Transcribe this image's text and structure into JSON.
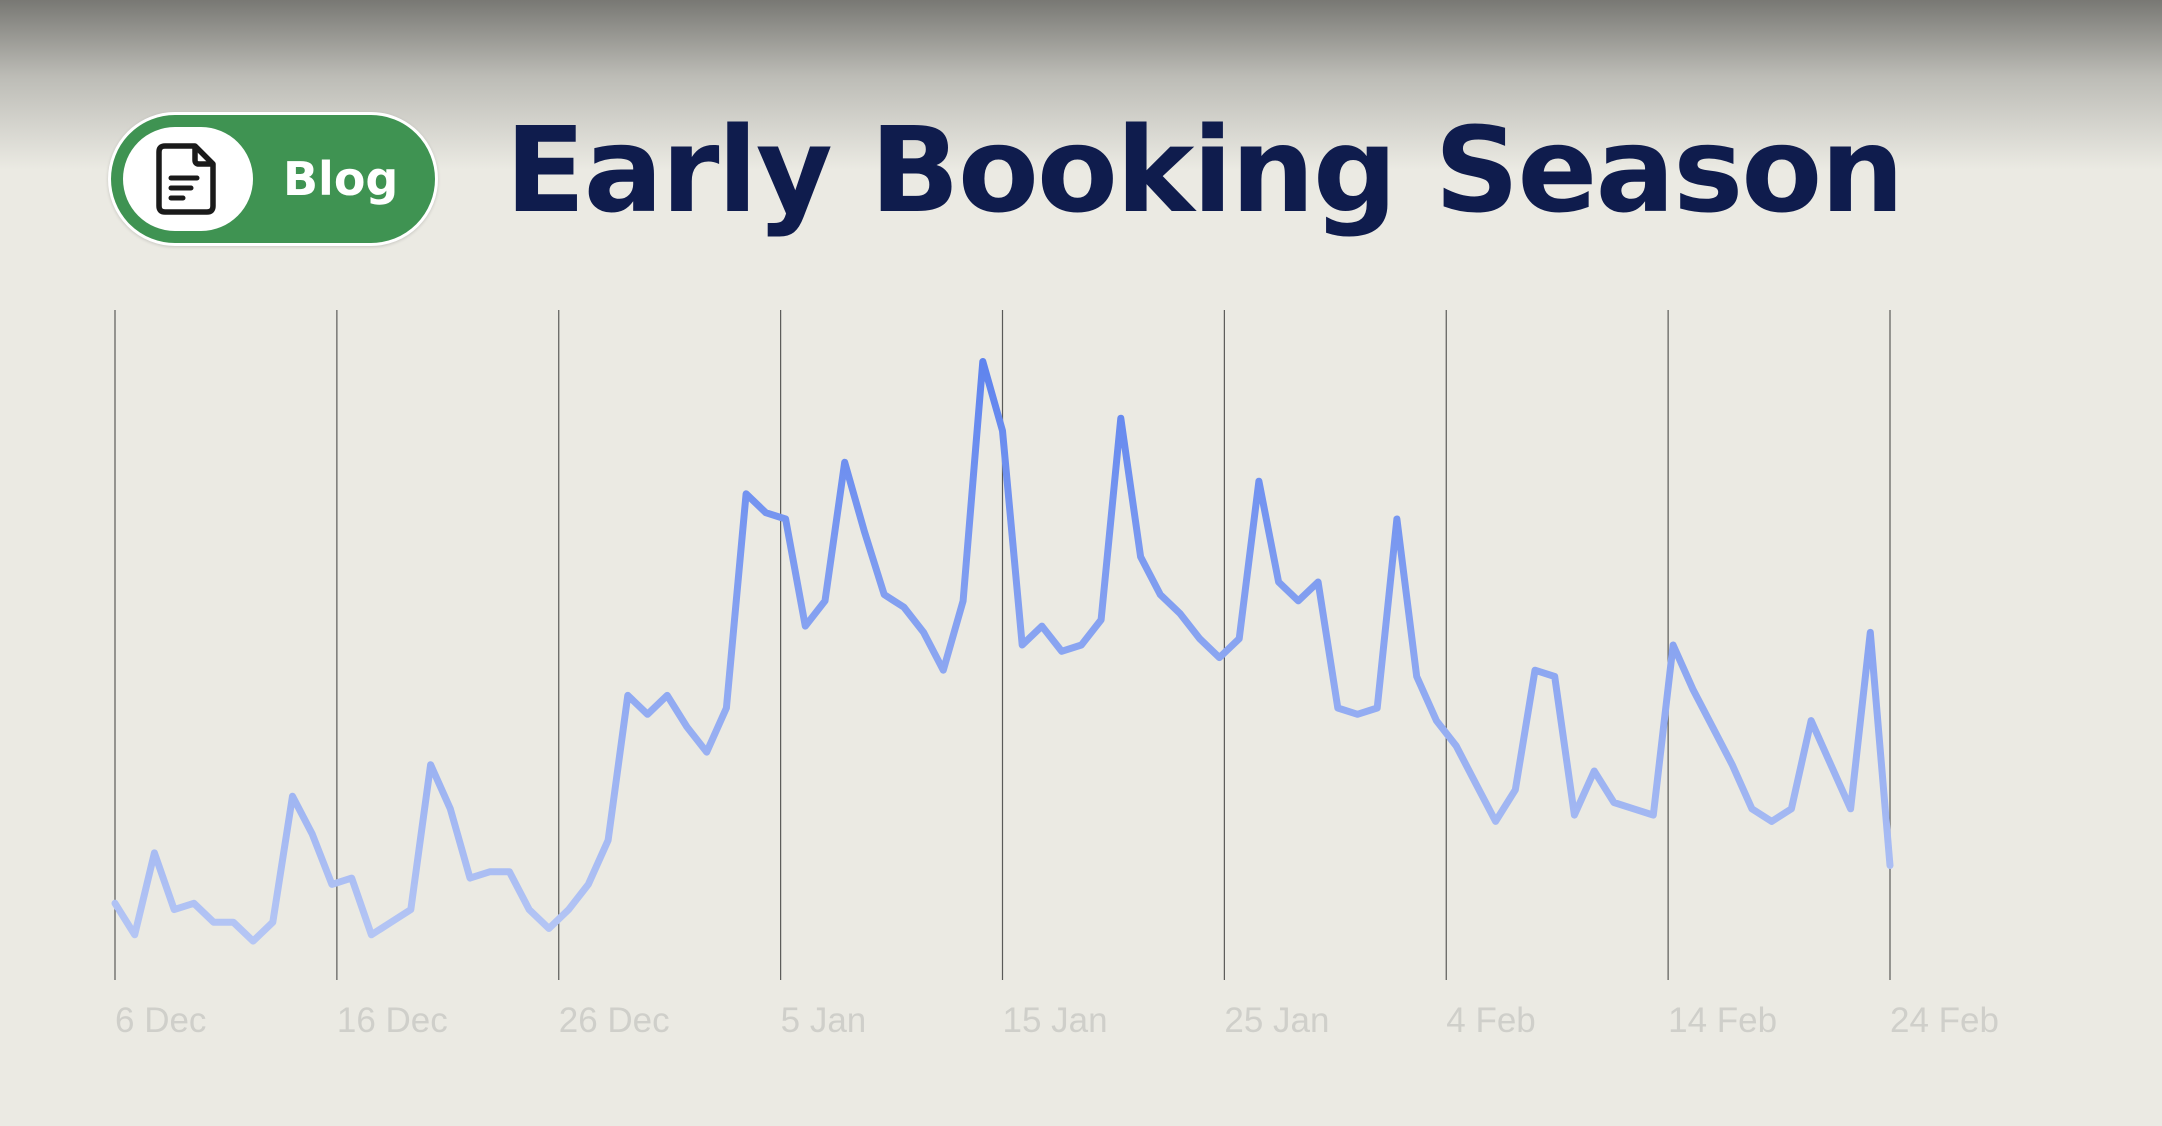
{
  "header": {
    "badge_label": "Blog",
    "badge_icon": "document-icon",
    "title": "Early Booking Season"
  },
  "colors": {
    "background": "#ebeae3",
    "badge": "#3f9352",
    "title": "#0f1c4d",
    "line": "#5a80ee",
    "line_faded": "#b8c8f4",
    "tick_label": "#cfcfca",
    "gridline": "#2a2a2a"
  },
  "chart_data": {
    "type": "line",
    "title": "",
    "xlabel": "",
    "ylabel": "",
    "x_tick_labels": [
      "6 Dec",
      "16 Dec",
      "26 Dec",
      "5 Jan",
      "15 Jan",
      "25 Jan",
      "4 Feb",
      "14 Feb",
      "24 Feb"
    ],
    "x_start": "6 Dec",
    "x_end": "24 Feb",
    "ylim": [
      0,
      100
    ],
    "grid": "vertical",
    "y_axis_labels_visible": false,
    "series": [
      {
        "values": [
          9,
          4,
          17,
          8,
          9,
          6,
          6,
          3,
          6,
          26,
          20,
          12,
          13,
          4,
          6,
          8,
          31,
          24,
          13,
          14,
          14,
          8,
          5,
          8,
          12,
          19,
          42,
          39,
          42,
          37,
          33,
          40,
          74,
          71,
          70,
          53,
          57,
          79,
          68,
          58,
          56,
          52,
          46,
          57,
          95,
          84,
          50,
          53,
          49,
          50,
          54,
          86,
          64,
          58,
          55,
          51,
          48,
          51,
          76,
          60,
          57,
          60,
          40,
          39,
          40,
          70,
          45,
          38,
          34,
          28,
          22,
          27,
          46,
          45,
          23,
          30,
          25,
          24,
          23,
          50,
          43,
          37,
          31,
          24,
          22,
          24,
          38,
          31,
          24,
          52,
          15
        ]
      }
    ]
  }
}
